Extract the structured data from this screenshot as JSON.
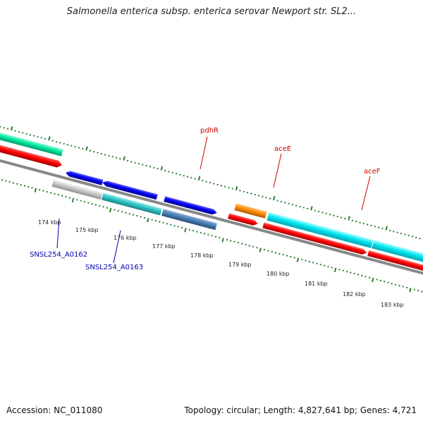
{
  "title": "Salmonella enterica subsp. enterica serovar Newport str. SL2...",
  "footer": {
    "accession": "Accession: NC_011080",
    "topology": "Topology: circular; Length: 4,827,641 bp; Genes: 4,721"
  },
  "ruler": {
    "labels": [
      "174 kbp",
      "175 kbp",
      "176 kbp",
      "177 kbp",
      "178 kbp",
      "179 kbp",
      "180 kbp",
      "181 kbp",
      "182 kbp",
      "183 kbp"
    ]
  },
  "genes_labeled": [
    {
      "name": "pdhR",
      "color": "#cc0000"
    },
    {
      "name": "aceE",
      "color": "#cc0000"
    },
    {
      "name": "aceF",
      "color": "#cc0000"
    },
    {
      "name": "SNSL254_A0162",
      "color": "#0000aa"
    },
    {
      "name": "SNSL254_A0163",
      "color": "#0000aa"
    }
  ],
  "colors": {
    "backbone": "#888888",
    "tick": "#2e7d32",
    "red": "#ff0000",
    "cyan": "#00e5ee",
    "blue": "#0000ee",
    "orange": "#ff8c00",
    "steel": "#4a7fb5",
    "teal": "#2ec4c4",
    "grey": "#c8c8c8",
    "mint": "#00e6a0"
  }
}
